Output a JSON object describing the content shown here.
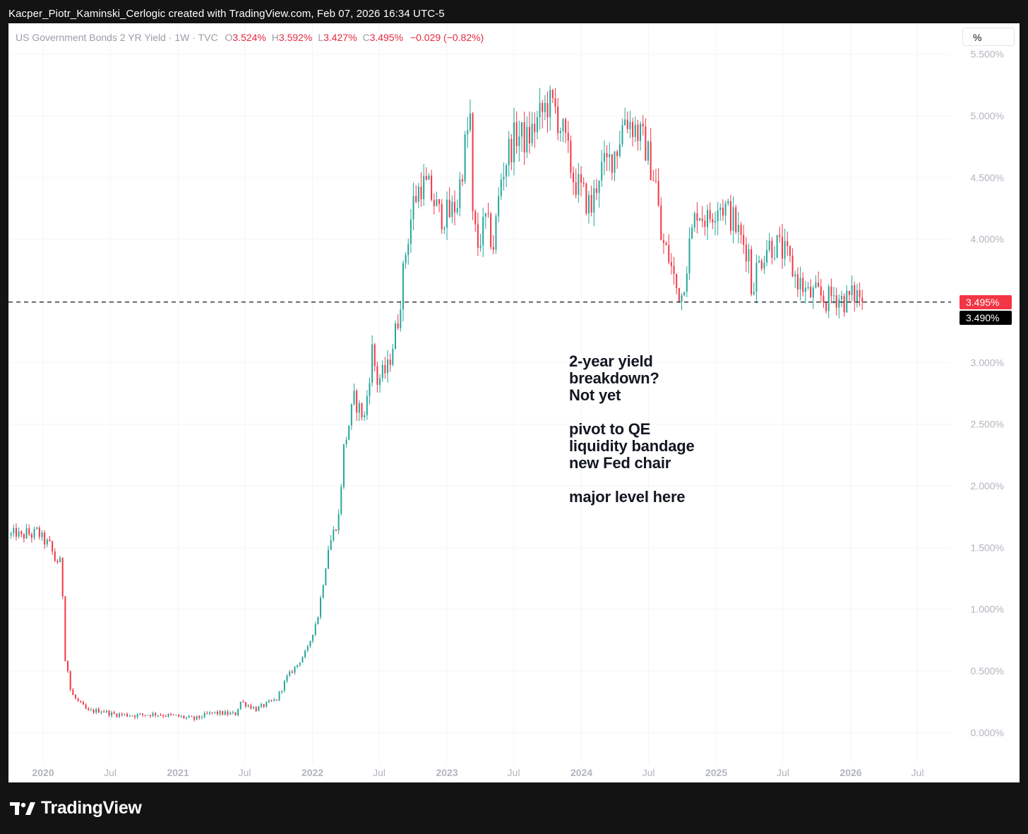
{
  "header": {
    "caption": "Kacper_Piotr_Kaminski_Cerlogic created with TradingView.com, Feb 07, 2026 16:34 UTC-5"
  },
  "legend": {
    "symbol": "US Government Bonds 2 YR Yield · 1W · TVC",
    "o_label": "O",
    "o_value": "3.524%",
    "h_label": "H",
    "h_value": "3.592%",
    "l_label": "L",
    "l_value": "3.427%",
    "c_label": "C",
    "c_value": "3.495%",
    "change": "−0.029 (−0.82%)"
  },
  "scale_button": "%",
  "annotation": "2-year yield\nbreakdown?\nNot yet\n\npivot to QE\nliquidity bandage\nnew Fed chair\n\nmajor level here",
  "price_tags": {
    "close": "3.495%",
    "level": "3.490%"
  },
  "brand": {
    "name": "TradingView"
  },
  "colors": {
    "up": "#26a69a",
    "down": "#f23645",
    "text_axis": "#b2b5be",
    "grid": "#f3f4f7",
    "panel_bg": "#ffffff",
    "page_bg": "#131313"
  },
  "chart_data": {
    "type": "candlestick",
    "title": "US Government Bonds 2 YR Yield · 1W · TVC",
    "ylabel": "",
    "ylim": [
      -0.25,
      5.75
    ],
    "y_ticks": [
      {
        "value": 5.5,
        "label": "5.500%"
      },
      {
        "value": 5.0,
        "label": "5.000%"
      },
      {
        "value": 4.5,
        "label": "4.500%"
      },
      {
        "value": 4.0,
        "label": "4.000%"
      },
      {
        "value": 3.0,
        "label": "3.000%"
      },
      {
        "value": 2.5,
        "label": "2.500%"
      },
      {
        "value": 2.0,
        "label": "2.000%"
      },
      {
        "value": 1.5,
        "label": "1.500%"
      },
      {
        "value": 1.0,
        "label": "1.000%"
      },
      {
        "value": 0.5,
        "label": "0.500%"
      },
      {
        "value": 0.0,
        "label": "0.000%"
      }
    ],
    "x_ticks": [
      {
        "date": "2020-01-01",
        "label": "2020",
        "major": true
      },
      {
        "date": "2020-07-01",
        "label": "Jul",
        "major": false
      },
      {
        "date": "2021-01-01",
        "label": "2021",
        "major": true
      },
      {
        "date": "2021-07-01",
        "label": "Jul",
        "major": false
      },
      {
        "date": "2022-01-01",
        "label": "2022",
        "major": true
      },
      {
        "date": "2022-07-01",
        "label": "Jul",
        "major": false
      },
      {
        "date": "2023-01-01",
        "label": "2023",
        "major": true
      },
      {
        "date": "2023-07-01",
        "label": "Jul",
        "major": false
      },
      {
        "date": "2024-01-01",
        "label": "2024",
        "major": true
      },
      {
        "date": "2024-07-01",
        "label": "Jul",
        "major": false
      },
      {
        "date": "2025-01-01",
        "label": "2025",
        "major": true
      },
      {
        "date": "2025-07-01",
        "label": "Jul",
        "major": false
      },
      {
        "date": "2026-01-01",
        "label": "2026",
        "major": true
      },
      {
        "date": "2026-07-01",
        "label": "Jul",
        "major": false
      }
    ],
    "x_range": [
      "2019-09-29",
      "2026-09-30"
    ],
    "weekly_close_path": [
      [
        "2019-10-06",
        1.6
      ],
      [
        "2019-10-20",
        1.62
      ],
      [
        "2019-11-03",
        1.58
      ],
      [
        "2019-11-17",
        1.62
      ],
      [
        "2019-12-01",
        1.6
      ],
      [
        "2019-12-15",
        1.63
      ],
      [
        "2020-01-05",
        1.55
      ],
      [
        "2020-01-19",
        1.52
      ],
      [
        "2020-02-02",
        1.4
      ],
      [
        "2020-02-16",
        1.38
      ],
      [
        "2020-02-23",
        1.12
      ],
      [
        "2020-03-01",
        0.6
      ],
      [
        "2020-03-08",
        0.5
      ],
      [
        "2020-03-15",
        0.35
      ],
      [
        "2020-03-22",
        0.3
      ],
      [
        "2020-04-05",
        0.25
      ],
      [
        "2020-05-03",
        0.17
      ],
      [
        "2020-06-07",
        0.18
      ],
      [
        "2020-07-05",
        0.15
      ],
      [
        "2020-09-06",
        0.14
      ],
      [
        "2020-11-01",
        0.15
      ],
      [
        "2021-01-03",
        0.13
      ],
      [
        "2021-02-14",
        0.11
      ],
      [
        "2021-04-04",
        0.16
      ],
      [
        "2021-06-06",
        0.15
      ],
      [
        "2021-06-20",
        0.25
      ],
      [
        "2021-08-01",
        0.19
      ],
      [
        "2021-09-26",
        0.27
      ],
      [
        "2021-10-24",
        0.45
      ],
      [
        "2021-11-21",
        0.55
      ],
      [
        "2021-12-19",
        0.68
      ],
      [
        "2022-01-16",
        0.95
      ],
      [
        "2022-02-13",
        1.5
      ],
      [
        "2022-03-13",
        1.75
      ],
      [
        "2022-03-27",
        2.3
      ],
      [
        "2022-04-24",
        2.7
      ],
      [
        "2022-05-22",
        2.55
      ],
      [
        "2022-06-12",
        3.1
      ],
      [
        "2022-06-26",
        2.85
      ],
      [
        "2022-07-24",
        2.95
      ],
      [
        "2022-08-21",
        3.35
      ],
      [
        "2022-09-11",
        3.9
      ],
      [
        "2022-10-02",
        4.3
      ],
      [
        "2022-10-23",
        4.45
      ],
      [
        "2022-11-13",
        4.4
      ],
      [
        "2022-12-11",
        4.2
      ],
      [
        "2023-01-08",
        4.2
      ],
      [
        "2023-01-29",
        4.3
      ],
      [
        "2023-02-19",
        4.75
      ],
      [
        "2023-03-05",
        4.98
      ],
      [
        "2023-03-12",
        4.15
      ],
      [
        "2023-03-26",
        3.95
      ],
      [
        "2023-04-16",
        4.15
      ],
      [
        "2023-05-07",
        3.95
      ],
      [
        "2023-05-28",
        4.5
      ],
      [
        "2023-06-18",
        4.72
      ],
      [
        "2023-07-09",
        4.85
      ],
      [
        "2023-08-06",
        4.8
      ],
      [
        "2023-09-03",
        4.95
      ],
      [
        "2023-10-01",
        5.1
      ],
      [
        "2023-10-22",
        5.05
      ],
      [
        "2023-11-12",
        4.85
      ],
      [
        "2023-12-10",
        4.5
      ],
      [
        "2024-01-07",
        4.35
      ],
      [
        "2024-01-28",
        4.25
      ],
      [
        "2024-02-18",
        4.55
      ],
      [
        "2024-03-10",
        4.6
      ],
      [
        "2024-04-07",
        4.75
      ],
      [
        "2024-04-28",
        5.0
      ],
      [
        "2024-05-26",
        4.9
      ],
      [
        "2024-06-23",
        4.75
      ],
      [
        "2024-07-21",
        4.45
      ],
      [
        "2024-08-04",
        4.0
      ],
      [
        "2024-08-25",
        3.85
      ],
      [
        "2024-09-15",
        3.6
      ],
      [
        "2024-09-29",
        3.55
      ],
      [
        "2024-10-20",
        3.95
      ],
      [
        "2024-11-10",
        4.25
      ],
      [
        "2024-12-08",
        4.15
      ],
      [
        "2025-01-05",
        4.3
      ],
      [
        "2025-01-26",
        4.25
      ],
      [
        "2025-02-16",
        4.15
      ],
      [
        "2025-03-09",
        4.0
      ],
      [
        "2025-03-30",
        3.9
      ],
      [
        "2025-04-06",
        3.6
      ],
      [
        "2025-04-20",
        3.75
      ],
      [
        "2025-05-18",
        3.95
      ],
      [
        "2025-06-15",
        3.95
      ],
      [
        "2025-07-13",
        3.85
      ],
      [
        "2025-08-03",
        3.7
      ],
      [
        "2025-09-07",
        3.55
      ],
      [
        "2025-10-05",
        3.55
      ],
      [
        "2025-10-26",
        3.5
      ],
      [
        "2025-11-16",
        3.55
      ],
      [
        "2025-12-14",
        3.5
      ],
      [
        "2026-01-11",
        3.55
      ],
      [
        "2026-01-25",
        3.55
      ],
      [
        "2026-02-01",
        3.495
      ]
    ],
    "last_candle": {
      "date": "2026-02-01",
      "open": 3.524,
      "high": 3.592,
      "low": 3.427,
      "close": 3.495
    },
    "horizontal_level": 3.49
  }
}
